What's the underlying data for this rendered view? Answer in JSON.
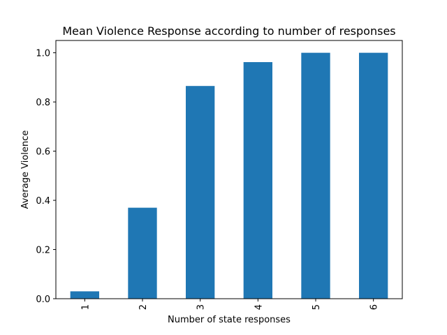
{
  "chart_data": {
    "type": "bar",
    "title": "Mean Violence Response according to number of responses",
    "xlabel": "Number of state responses",
    "ylabel": "Average Violence",
    "categories": [
      "1",
      "2",
      "3",
      "4",
      "5",
      "6"
    ],
    "values": [
      0.03,
      0.37,
      0.865,
      0.962,
      1.0,
      1.0
    ],
    "ylim": [
      0,
      1.05
    ],
    "yticks": [
      0.0,
      0.2,
      0.4,
      0.6,
      0.8,
      1.0
    ],
    "ytick_labels": [
      "0.0",
      "0.2",
      "0.4",
      "0.6",
      "0.8",
      "1.0"
    ],
    "x_tick_rotation": "vertical",
    "grid": false,
    "bar_color": "#1f77b4"
  }
}
